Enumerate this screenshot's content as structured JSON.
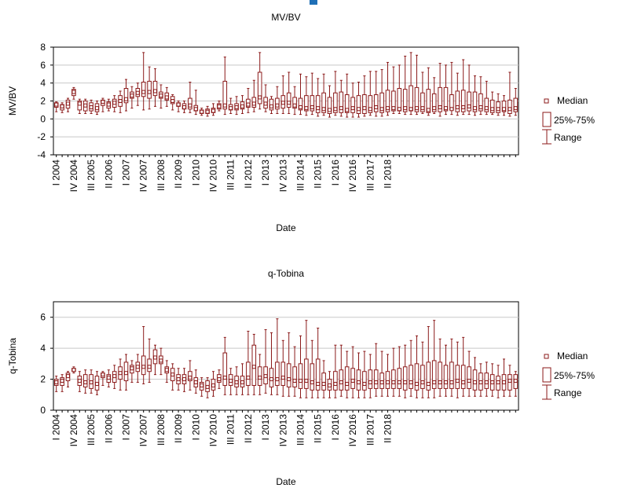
{
  "colors": {
    "box": "#8b1a1a",
    "grid": "#c8c8c8",
    "axis": "#000000",
    "text": "#000000",
    "accent": "#1f6fb6"
  },
  "legend": {
    "median": "Median",
    "box": "25%-75%",
    "range": "Range"
  },
  "x_ticks": [
    "I 2004",
    "IV 2004",
    "III 2005",
    "II 2006",
    "I 2007",
    "IV 2007",
    "III 2008",
    "II 2009",
    "I 2010",
    "IV 2010",
    "III 2011",
    "II 2012",
    "I 2013",
    "IV 2013",
    "III 2014",
    "II 2015",
    "I 2016",
    "IV 2016",
    "III 2017",
    "II 2018"
  ],
  "chart_data": [
    {
      "type": "box",
      "title": "MV/BV",
      "xlabel": "Date",
      "ylabel": "MV/BV",
      "ylim": [
        -4,
        8
      ],
      "yticks": [
        -4,
        -2,
        0,
        2,
        4,
        6,
        8
      ],
      "grid": true,
      "legend_position": "right",
      "x_ticks_per_label": 3,
      "boxes": [
        [
          0.8,
          1.3,
          1.6,
          1.8,
          1.9
        ],
        [
          0.7,
          1.0,
          1.4,
          1.6,
          1.8
        ],
        [
          0.8,
          1.2,
          1.7,
          2.1,
          2.3
        ],
        [
          2.2,
          2.6,
          3.0,
          3.3,
          3.5
        ],
        [
          0.6,
          1.0,
          1.7,
          2.0,
          2.2
        ],
        [
          0.6,
          0.9,
          1.5,
          2.0,
          2.2
        ],
        [
          0.6,
          0.9,
          1.3,
          1.8,
          2.1
        ],
        [
          0.5,
          0.8,
          1.2,
          1.7,
          2.0
        ],
        [
          0.8,
          1.5,
          1.9,
          2.1,
          2.3
        ],
        [
          0.9,
          1.2,
          1.6,
          1.9,
          2.2
        ],
        [
          0.8,
          1.3,
          1.8,
          2.2,
          2.6
        ],
        [
          0.7,
          1.4,
          2.0,
          2.6,
          3.1
        ],
        [
          0.9,
          1.8,
          2.2,
          3.4,
          4.4
        ],
        [
          1.2,
          2.3,
          2.6,
          3.0,
          3.6
        ],
        [
          1.5,
          2.5,
          2.9,
          3.4,
          4.0
        ],
        [
          1.0,
          2.5,
          3.0,
          4.1,
          7.4
        ],
        [
          1.1,
          2.3,
          3.0,
          4.2,
          5.8
        ],
        [
          1.4,
          2.6,
          3.1,
          4.2,
          5.6
        ],
        [
          1.2,
          2.3,
          2.6,
          3.0,
          3.8
        ],
        [
          1.4,
          2.1,
          2.4,
          2.9,
          3.5
        ],
        [
          1.0,
          1.7,
          2.0,
          2.5,
          2.7
        ],
        [
          0.8,
          1.4,
          1.6,
          1.8,
          2.0
        ],
        [
          0.7,
          1.1,
          1.3,
          1.7,
          2.0
        ],
        [
          0.7,
          1.1,
          1.5,
          2.3,
          4.1
        ],
        [
          0.5,
          0.9,
          1.1,
          1.5,
          3.2
        ],
        [
          0.4,
          0.6,
          0.8,
          1.0,
          1.2
        ],
        [
          0.3,
          0.6,
          0.8,
          1.1,
          1.4
        ],
        [
          0.4,
          0.7,
          0.9,
          1.2,
          1.7
        ],
        [
          0.9,
          1.1,
          1.4,
          1.7,
          2.0
        ],
        [
          0.5,
          1.1,
          1.5,
          4.2,
          6.9
        ],
        [
          0.6,
          1.0,
          1.2,
          1.6,
          2.3
        ],
        [
          0.5,
          1.0,
          1.3,
          1.7,
          2.5
        ],
        [
          0.6,
          1.1,
          1.4,
          1.9,
          2.6
        ],
        [
          0.7,
          1.3,
          1.6,
          2.2,
          3.4
        ],
        [
          0.8,
          1.3,
          1.7,
          2.4,
          4.3
        ],
        [
          1.1,
          1.7,
          2.4,
          5.2,
          7.4
        ],
        [
          0.8,
          1.2,
          1.7,
          2.4,
          3.8
        ],
        [
          0.6,
          1.0,
          1.4,
          2.2,
          2.5
        ],
        [
          0.6,
          1.1,
          1.5,
          2.3,
          3.6
        ],
        [
          0.6,
          1.2,
          1.8,
          2.6,
          4.8
        ],
        [
          0.6,
          1.3,
          1.8,
          2.9,
          5.2
        ],
        [
          0.5,
          1.2,
          1.5,
          2.4,
          3.6
        ],
        [
          0.5,
          1.0,
          1.3,
          2.3,
          5.0
        ],
        [
          0.4,
          0.9,
          1.2,
          2.6,
          4.7
        ],
        [
          0.5,
          0.9,
          1.3,
          2.6,
          5.1
        ],
        [
          0.3,
          0.7,
          1.2,
          2.6,
          4.5
        ],
        [
          0.4,
          0.7,
          1.1,
          2.9,
          5.0
        ],
        [
          0.2,
          0.6,
          1.0,
          2.4,
          3.7
        ],
        [
          0.4,
          0.7,
          1.1,
          2.9,
          5.3
        ],
        [
          0.3,
          0.7,
          1.2,
          3.0,
          4.3
        ],
        [
          0.2,
          0.7,
          1.0,
          2.7,
          5.0
        ],
        [
          0.2,
          0.7,
          1.2,
          2.4,
          4.0
        ],
        [
          0.2,
          0.6,
          1.1,
          2.6,
          4.1
        ],
        [
          0.3,
          0.6,
          1.2,
          2.7,
          4.8
        ],
        [
          0.4,
          0.7,
          1.1,
          2.6,
          5.3
        ],
        [
          0.3,
          0.8,
          1.3,
          2.7,
          5.3
        ],
        [
          0.3,
          0.7,
          1.1,
          2.9,
          5.5
        ],
        [
          0.4,
          0.8,
          1.2,
          3.2,
          6.3
        ],
        [
          0.6,
          0.9,
          1.2,
          3.1,
          5.8
        ],
        [
          0.6,
          0.9,
          1.1,
          3.4,
          6.0
        ],
        [
          0.5,
          0.8,
          1.2,
          3.3,
          7.0
        ],
        [
          0.5,
          0.9,
          1.1,
          3.7,
          7.4
        ],
        [
          0.5,
          0.8,
          1.2,
          3.5,
          7.1
        ],
        [
          0.6,
          0.8,
          1.2,
          2.9,
          5.2
        ],
        [
          0.4,
          0.7,
          1.0,
          3.3,
          5.7
        ],
        [
          0.6,
          0.8,
          1.2,
          2.8,
          4.6
        ],
        [
          0.3,
          0.8,
          1.3,
          3.5,
          6.2
        ],
        [
          0.5,
          0.9,
          1.2,
          3.5,
          6.0
        ],
        [
          0.5,
          1.0,
          1.1,
          2.7,
          6.3
        ],
        [
          0.4,
          0.8,
          1.3,
          3.1,
          5.1
        ],
        [
          0.5,
          0.8,
          1.3,
          3.2,
          6.6
        ],
        [
          0.5,
          0.9,
          1.4,
          3.0,
          6.0
        ],
        [
          0.4,
          0.8,
          1.2,
          3.0,
          4.8
        ],
        [
          0.5,
          0.9,
          1.3,
          2.8,
          4.7
        ],
        [
          0.5,
          0.8,
          1.2,
          2.3,
          4.2
        ],
        [
          0.5,
          0.7,
          1.1,
          2.1,
          3.0
        ],
        [
          0.4,
          0.7,
          1.1,
          1.9,
          2.8
        ],
        [
          0.4,
          0.8,
          1.1,
          2.0,
          2.6
        ],
        [
          0.3,
          0.6,
          1.1,
          2.1,
          5.2
        ],
        [
          0.4,
          0.8,
          1.2,
          2.3,
          3.4
        ]
      ]
    },
    {
      "type": "box",
      "title": "q-Tobina",
      "xlabel": "Date",
      "ylabel": "q-Tobina",
      "ylim": [
        0,
        7
      ],
      "yticks": [
        0,
        2,
        4,
        6
      ],
      "grid": true,
      "legend_position": "right",
      "x_ticks_per_label": 3,
      "boxes": [
        [
          1.2,
          1.6,
          1.8,
          2.0,
          2.2
        ],
        [
          1.2,
          1.6,
          1.9,
          2.1,
          2.3
        ],
        [
          1.5,
          1.9,
          2.2,
          2.4,
          2.5
        ],
        [
          2.4,
          2.5,
          2.6,
          2.7,
          2.8
        ],
        [
          1.2,
          1.6,
          1.9,
          2.2,
          2.5
        ],
        [
          1.1,
          1.5,
          1.8,
          2.3,
          2.6
        ],
        [
          1.1,
          1.4,
          1.8,
          2.3,
          2.6
        ],
        [
          1.0,
          1.3,
          1.7,
          2.2,
          2.5
        ],
        [
          1.6,
          2.1,
          2.3,
          2.4,
          2.5
        ],
        [
          1.5,
          1.8,
          2.1,
          2.3,
          2.6
        ],
        [
          1.4,
          1.8,
          2.2,
          2.5,
          2.9
        ],
        [
          1.3,
          2.0,
          2.4,
          2.8,
          3.3
        ],
        [
          1.3,
          1.9,
          2.4,
          3.1,
          3.6
        ],
        [
          1.8,
          2.4,
          2.7,
          2.9,
          3.2
        ],
        [
          1.8,
          2.5,
          2.8,
          3.1,
          3.6
        ],
        [
          1.7,
          2.3,
          2.8,
          3.5,
          5.4
        ],
        [
          1.8,
          2.5,
          2.8,
          3.3,
          4.6
        ],
        [
          2.3,
          3.0,
          3.4,
          3.9,
          4.2
        ],
        [
          2.3,
          3.0,
          3.2,
          3.5,
          4.0
        ],
        [
          1.8,
          2.4,
          2.6,
          2.8,
          3.2
        ],
        [
          1.3,
          1.9,
          2.3,
          2.7,
          3.0
        ],
        [
          1.3,
          1.7,
          2.0,
          2.3,
          2.7
        ],
        [
          1.2,
          1.7,
          2.0,
          2.3,
          2.7
        ],
        [
          1.3,
          1.9,
          2.1,
          2.5,
          3.2
        ],
        [
          1.1,
          1.5,
          1.8,
          2.1,
          2.6
        ],
        [
          0.9,
          1.3,
          1.6,
          1.8,
          2.1
        ],
        [
          0.8,
          1.2,
          1.5,
          1.9,
          2.1
        ],
        [
          0.9,
          1.3,
          1.6,
          2.0,
          2.5
        ],
        [
          1.4,
          1.8,
          2.0,
          2.3,
          2.6
        ],
        [
          1.0,
          1.6,
          2.1,
          3.7,
          4.7
        ],
        [
          1.0,
          1.6,
          1.9,
          2.3,
          2.7
        ],
        [
          1.0,
          1.5,
          1.8,
          2.2,
          2.8
        ],
        [
          1.0,
          1.5,
          1.8,
          2.2,
          3.0
        ],
        [
          1.0,
          1.6,
          2.1,
          3.1,
          5.1
        ],
        [
          1.0,
          1.6,
          2.8,
          4.2,
          4.9
        ],
        [
          1.0,
          1.6,
          2.1,
          2.8,
          3.6
        ],
        [
          1.1,
          1.7,
          2.2,
          2.8,
          5.2
        ],
        [
          1.0,
          1.5,
          2.0,
          2.7,
          5.0
        ],
        [
          1.0,
          1.6,
          2.0,
          3.1,
          5.9
        ],
        [
          0.9,
          1.6,
          2.1,
          3.1,
          4.5
        ],
        [
          0.9,
          1.5,
          2.0,
          3.0,
          5.0
        ],
        [
          0.9,
          1.5,
          1.9,
          2.8,
          4.1
        ],
        [
          0.8,
          1.4,
          1.9,
          3.0,
          4.8
        ],
        [
          0.8,
          1.4,
          1.9,
          3.3,
          5.8
        ],
        [
          0.8,
          1.3,
          1.8,
          3.0,
          4.5
        ],
        [
          0.8,
          1.3,
          1.7,
          3.3,
          5.3
        ],
        [
          0.8,
          1.3,
          1.7,
          2.4,
          3.2
        ],
        [
          0.8,
          1.3,
          1.6,
          2.0,
          2.5
        ],
        [
          0.8,
          1.3,
          1.7,
          2.5,
          4.2
        ],
        [
          0.9,
          1.3,
          1.8,
          2.6,
          4.2
        ],
        [
          0.8,
          1.3,
          1.7,
          2.8,
          3.8
        ],
        [
          0.8,
          1.4,
          1.9,
          2.7,
          4.1
        ],
        [
          0.8,
          1.3,
          1.8,
          2.6,
          3.7
        ],
        [
          0.8,
          1.3,
          1.7,
          2.5,
          3.8
        ],
        [
          0.8,
          1.4,
          1.8,
          2.6,
          3.6
        ],
        [
          0.9,
          1.4,
          1.8,
          2.6,
          4.3
        ],
        [
          0.9,
          1.4,
          1.8,
          2.4,
          3.8
        ],
        [
          0.9,
          1.4,
          1.8,
          2.5,
          3.6
        ],
        [
          0.9,
          1.4,
          1.8,
          2.6,
          4.0
        ],
        [
          0.9,
          1.4,
          1.8,
          2.7,
          4.1
        ],
        [
          0.8,
          1.3,
          1.8,
          2.8,
          4.2
        ],
        [
          0.9,
          1.4,
          1.8,
          2.9,
          4.5
        ],
        [
          0.8,
          1.3,
          1.7,
          3.0,
          4.8
        ],
        [
          0.8,
          1.4,
          1.8,
          2.9,
          4.4
        ],
        [
          0.8,
          1.3,
          1.7,
          3.1,
          5.4
        ],
        [
          0.8,
          1.4,
          1.8,
          3.2,
          5.8
        ],
        [
          0.9,
          1.4,
          1.8,
          3.1,
          4.6
        ],
        [
          0.9,
          1.4,
          1.8,
          2.9,
          4.2
        ],
        [
          0.9,
          1.4,
          1.8,
          3.1,
          4.6
        ],
        [
          0.8,
          1.4,
          1.9,
          2.9,
          4.4
        ],
        [
          0.9,
          1.4,
          1.8,
          2.9,
          4.7
        ],
        [
          0.9,
          1.4,
          1.9,
          2.8,
          3.8
        ],
        [
          0.9,
          1.3,
          1.8,
          2.6,
          3.4
        ],
        [
          0.9,
          1.3,
          1.8,
          2.4,
          3.0
        ],
        [
          0.9,
          1.4,
          1.8,
          2.4,
          3.1
        ],
        [
          0.9,
          1.3,
          1.8,
          2.3,
          3.0
        ],
        [
          0.8,
          1.3,
          1.8,
          2.2,
          2.9
        ],
        [
          0.9,
          1.3,
          1.8,
          2.3,
          3.3
        ],
        [
          0.9,
          1.3,
          1.9,
          2.3,
          2.9
        ],
        [
          0.9,
          1.4,
          1.9,
          2.3,
          2.5
        ]
      ]
    }
  ]
}
